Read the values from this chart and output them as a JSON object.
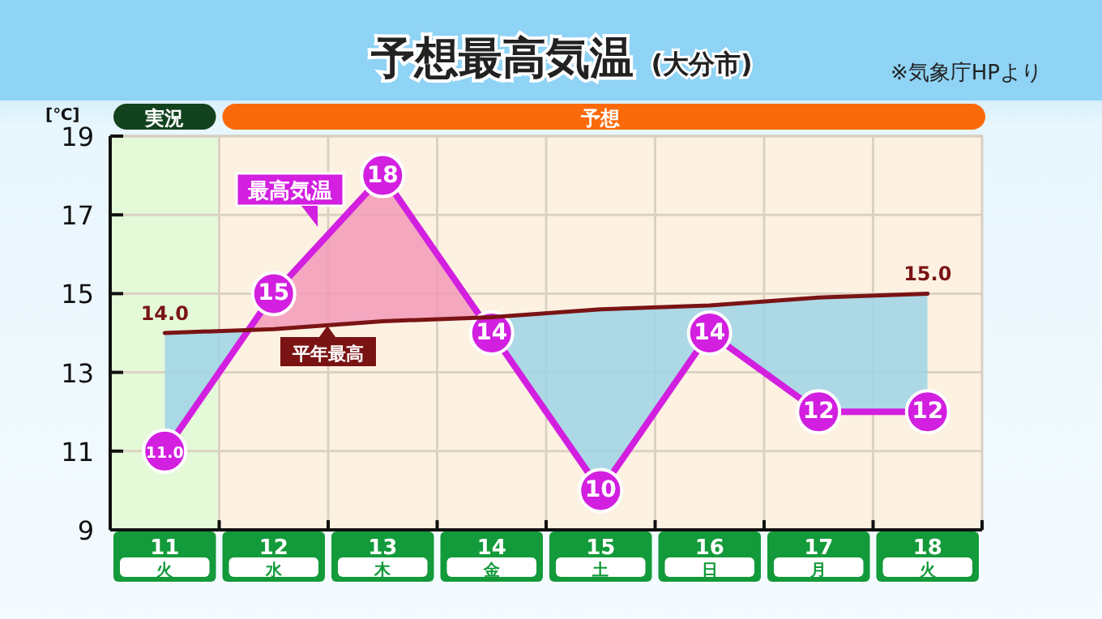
{
  "chart_data": {
    "type": "line",
    "title": "予想最高気温",
    "subtitle": "(大分市)",
    "ylabel": "[℃]",
    "categories": [
      "11 火",
      "12 水",
      "13 木",
      "14 金",
      "15 土",
      "16 日",
      "17 月",
      "18 火"
    ],
    "series": [
      {
        "name": "最高気温",
        "color": "#d21fe0",
        "values": [
          11,
          15,
          18,
          14,
          10,
          14,
          12,
          12
        ],
        "value_labels": [
          "11.0",
          "15",
          "18",
          "14",
          "10",
          "14",
          "12",
          "12"
        ],
        "marker": "circle"
      },
      {
        "name": "平年最高",
        "color": "#7a1414",
        "values": [
          14.0,
          14.1,
          14.3,
          14.4,
          14.6,
          14.7,
          14.9,
          15.0
        ],
        "value_labels": [
          "14.0",
          null,
          null,
          null,
          null,
          null,
          null,
          "15.0"
        ],
        "marker": "none"
      }
    ],
    "ylim": [
      9,
      19
    ],
    "yticks": [
      9,
      11,
      13,
      15,
      17,
      19
    ],
    "grid": true,
    "bands": [
      {
        "axis": "x",
        "from": "11 火",
        "to": "11 火",
        "color": "#e4f9d8"
      }
    ],
    "annotations": [
      "実況",
      "予想",
      "※気象庁HPより"
    ]
  }
}
